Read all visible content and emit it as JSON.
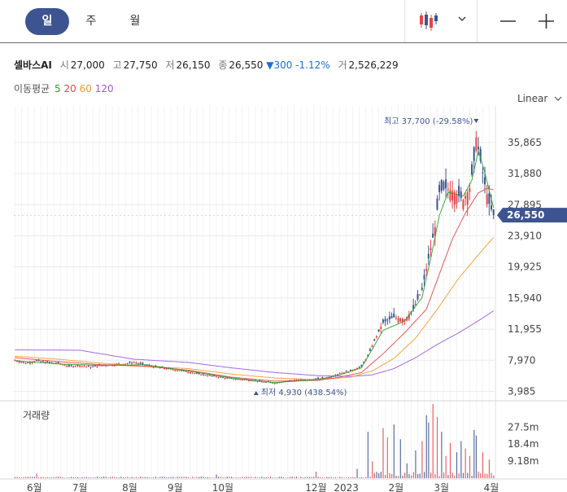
{
  "toolbar": {
    "tabs": [
      {
        "label": "일",
        "active": true
      },
      {
        "label": "주",
        "active": false
      },
      {
        "label": "월",
        "active": false
      }
    ],
    "chart_type_icon": "candlestick-icon",
    "dropdown_icon": "chevron-down-icon",
    "zoom_out_icon": "minus-icon",
    "zoom_in_icon": "plus-icon"
  },
  "stock": {
    "name": "셀바스AI",
    "open_label": "시",
    "open": "27,000",
    "high_label": "고",
    "high": "27,750",
    "low_label": "저",
    "low": "26,150",
    "close_label": "종",
    "close": "26,550",
    "change_arrow": "▼",
    "change": "300",
    "change_pct": "-1.12%",
    "volume_label": "거",
    "volume": "2,526,229"
  },
  "ma": {
    "label": "이동평균",
    "periods": [
      {
        "label": "5",
        "color": "#2aa02a"
      },
      {
        "label": "20",
        "color": "#e64545"
      },
      {
        "label": "60",
        "color": "#f39a2f"
      },
      {
        "label": "120",
        "color": "#9b59e0"
      }
    ]
  },
  "scale_label": "Linear",
  "volume_title": "거래량",
  "chart_data": {
    "type": "candlestick",
    "price_axis": {
      "ticks": [
        3985,
        7970,
        11955,
        15940,
        19925,
        23910,
        27895,
        31880,
        35865
      ],
      "tick_labels": [
        "3,985",
        "7,970",
        "11,955",
        "15,940",
        "19,925",
        "23,910",
        "27,895",
        "31,880",
        "35,865"
      ],
      "range": [
        3200,
        39500
      ]
    },
    "volume_axis": {
      "ticks": [
        9180000,
        18400000,
        27500000
      ],
      "tick_labels": [
        "9.18m",
        "18.4m",
        "27.5m"
      ],
      "range": [
        0,
        40000000
      ]
    },
    "x_labels": [
      "6월",
      "7월",
      "8월",
      "9월",
      "10월",
      "12월",
      "2023",
      "2월",
      "3월",
      "4월"
    ],
    "x_label_days": [
      9,
      30,
      53,
      74,
      96,
      139,
      153,
      176,
      197,
      220
    ],
    "last_price": 26550,
    "last_price_label": "26,550",
    "high_marker": {
      "label": "최고",
      "value_label": "37,700 (-29.58%)",
      "price": 37700,
      "day": 213
    },
    "low_marker": {
      "label": "최저",
      "value_label": "4,930 (438.54%)",
      "price": 4930,
      "day": 120
    },
    "anchors": [
      [
        0,
        8000
      ],
      [
        5,
        7600
      ],
      [
        10,
        7900
      ],
      [
        15,
        7700
      ],
      [
        20,
        7600
      ],
      [
        25,
        7200
      ],
      [
        30,
        7300
      ],
      [
        35,
        7100
      ],
      [
        40,
        7300
      ],
      [
        45,
        7400
      ],
      [
        50,
        7500
      ],
      [
        55,
        7700
      ],
      [
        60,
        7400
      ],
      [
        65,
        7100
      ],
      [
        70,
        6900
      ],
      [
        75,
        6700
      ],
      [
        80,
        6500
      ],
      [
        85,
        6200
      ],
      [
        90,
        6000
      ],
      [
        95,
        5800
      ],
      [
        100,
        5600
      ],
      [
        105,
        5500
      ],
      [
        110,
        5400
      ],
      [
        115,
        5200
      ],
      [
        120,
        5050
      ],
      [
        125,
        5300
      ],
      [
        130,
        5500
      ],
      [
        135,
        5400
      ],
      [
        140,
        5600
      ],
      [
        145,
        5750
      ],
      [
        150,
        6300
      ],
      [
        155,
        6600
      ],
      [
        160,
        7200
      ],
      [
        163,
        8500
      ],
      [
        166,
        10500
      ],
      [
        170,
        12800
      ],
      [
        175,
        13500
      ],
      [
        180,
        13200
      ],
      [
        184,
        14500
      ],
      [
        188,
        17000
      ],
      [
        191,
        21000
      ],
      [
        194,
        25000
      ],
      [
        196,
        29500
      ],
      [
        199,
        30000
      ],
      [
        203,
        29500
      ],
      [
        207,
        28500
      ],
      [
        210,
        30000
      ],
      [
        212,
        33500
      ],
      [
        213,
        36500
      ],
      [
        215,
        33500
      ],
      [
        217,
        30500
      ],
      [
        219,
        28000
      ],
      [
        221,
        26550
      ]
    ],
    "ma5_anchors": [
      [
        0,
        7900
      ],
      [
        20,
        7500
      ],
      [
        40,
        7300
      ],
      [
        60,
        7400
      ],
      [
        80,
        6600
      ],
      [
        100,
        5700
      ],
      [
        120,
        5100
      ],
      [
        140,
        5500
      ],
      [
        150,
        6100
      ],
      [
        160,
        7000
      ],
      [
        170,
        11800
      ],
      [
        180,
        13000
      ],
      [
        188,
        16000
      ],
      [
        192,
        21000
      ],
      [
        196,
        26500
      ],
      [
        200,
        29500
      ],
      [
        207,
        29000
      ],
      [
        211,
        31000
      ],
      [
        214,
        34800
      ],
      [
        217,
        32000
      ],
      [
        221,
        27500
      ]
    ],
    "ma20_anchors": [
      [
        0,
        8300
      ],
      [
        20,
        7800
      ],
      [
        40,
        7400
      ],
      [
        60,
        7200
      ],
      [
        80,
        6700
      ],
      [
        100,
        5800
      ],
      [
        120,
        5300
      ],
      [
        140,
        5400
      ],
      [
        150,
        5800
      ],
      [
        160,
        6400
      ],
      [
        170,
        8800
      ],
      [
        180,
        11500
      ],
      [
        190,
        14500
      ],
      [
        196,
        19000
      ],
      [
        202,
        23500
      ],
      [
        208,
        26800
      ],
      [
        214,
        29400
      ],
      [
        218,
        30000
      ],
      [
        221,
        29800
      ]
    ],
    "ma60_anchors": [
      [
        0,
        8500
      ],
      [
        20,
        8100
      ],
      [
        40,
        7600
      ],
      [
        60,
        7200
      ],
      [
        80,
        6900
      ],
      [
        100,
        6200
      ],
      [
        120,
        5700
      ],
      [
        140,
        5500
      ],
      [
        155,
        5800
      ],
      [
        165,
        6600
      ],
      [
        175,
        8200
      ],
      [
        185,
        10800
      ],
      [
        195,
        14500
      ],
      [
        205,
        18500
      ],
      [
        215,
        21800
      ],
      [
        221,
        23700
      ]
    ],
    "ma120_anchors": [
      [
        0,
        9300
      ],
      [
        30,
        9250
      ],
      [
        55,
        8100
      ],
      [
        80,
        7700
      ],
      [
        100,
        7000
      ],
      [
        120,
        6400
      ],
      [
        140,
        6000
      ],
      [
        155,
        5900
      ],
      [
        165,
        6100
      ],
      [
        175,
        6900
      ],
      [
        185,
        8300
      ],
      [
        195,
        10000
      ],
      [
        205,
        11500
      ],
      [
        215,
        13200
      ],
      [
        221,
        14300
      ]
    ],
    "volume_spikes": [
      [
        10,
        2500000
      ],
      [
        93,
        2000000
      ],
      [
        139,
        3500000
      ],
      [
        158,
        5000000
      ],
      [
        163,
        25000000
      ],
      [
        165,
        9000000
      ],
      [
        170,
        27000000
      ],
      [
        172,
        22000000
      ],
      [
        175,
        29000000
      ],
      [
        178,
        21000000
      ],
      [
        181,
        8000000
      ],
      [
        185,
        15000000
      ],
      [
        188,
        20000000
      ],
      [
        190,
        34000000
      ],
      [
        191,
        30000000
      ],
      [
        193,
        40000000
      ],
      [
        195,
        33000000
      ],
      [
        197,
        25000000
      ],
      [
        199,
        12000000
      ],
      [
        201,
        19000000
      ],
      [
        204,
        14000000
      ],
      [
        206,
        20000000
      ],
      [
        208,
        16000000
      ],
      [
        210,
        12000000
      ],
      [
        212,
        26000000
      ],
      [
        213,
        23000000
      ],
      [
        216,
        14000000
      ],
      [
        219,
        10000000
      ]
    ]
  }
}
